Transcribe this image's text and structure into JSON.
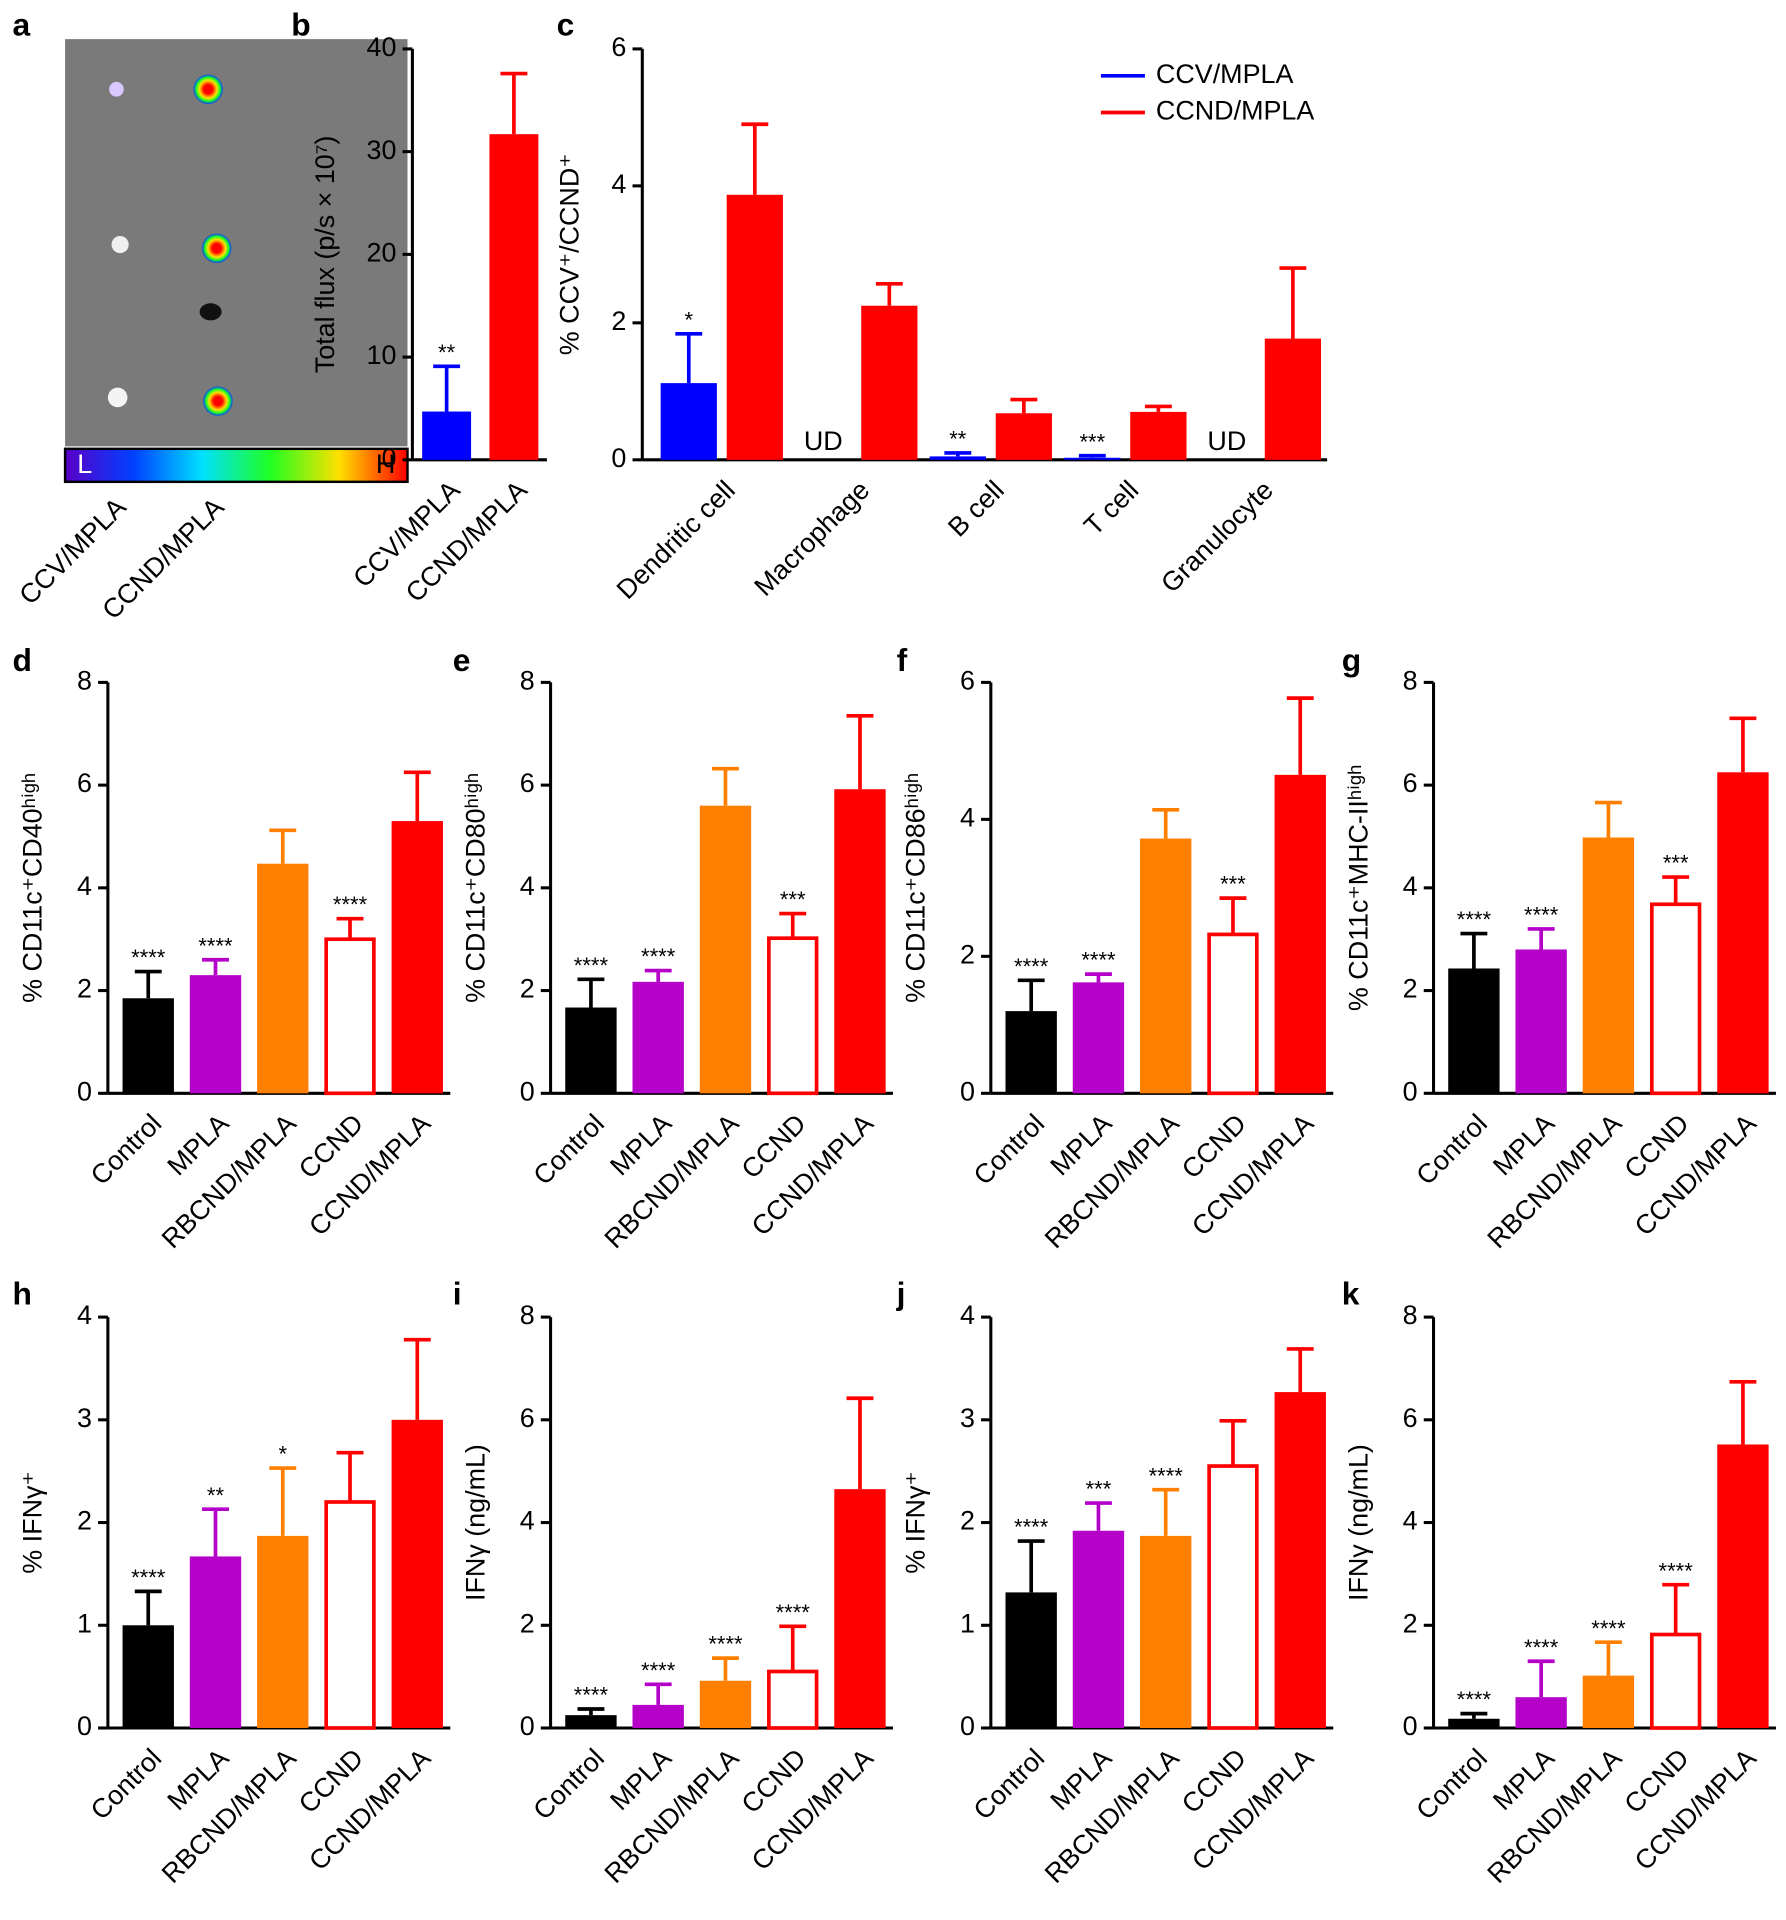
{
  "chart_data": [
    {
      "panel": "a",
      "type": "image",
      "categories": [
        "CCV/MPLA",
        "CCND/MPLA"
      ],
      "colorbar_labels": [
        "L",
        "H"
      ]
    },
    {
      "panel": "b",
      "type": "bar",
      "ylabel": "Total flux (p/s × 10⁷)",
      "categories": [
        "CCV/MPLA",
        "CCND/MPLA"
      ],
      "values": [
        4.7,
        31.7
      ],
      "errors": [
        4.4,
        5.9
      ],
      "annotations": [
        "**",
        null
      ],
      "colors": [
        "#0000ff",
        "#ff0000"
      ],
      "ylim": [
        0,
        40
      ],
      "yticks": [
        0,
        10,
        20,
        30,
        40
      ]
    },
    {
      "panel": "c",
      "type": "grouped-bar",
      "ylabel": "% CCV⁺/CCND⁺",
      "categories": [
        "Dendritic cell",
        "Macrophage",
        "B cell",
        "T cell",
        "Granulocyte"
      ],
      "series": [
        {
          "name": "CCV/MPLA",
          "color": "#0000ff",
          "values": [
            1.12,
            null,
            0.05,
            0.03,
            null
          ],
          "errors": [
            0.72,
            null,
            0.05,
            0.03,
            null
          ],
          "annotations": [
            "*",
            null,
            "**",
            "***",
            null
          ],
          "value_labels": [
            null,
            "UD",
            null,
            null,
            "UD"
          ]
        },
        {
          "name": "CCND/MPLA",
          "color": "#ff0000",
          "values": [
            3.87,
            2.25,
            0.68,
            0.7,
            1.77
          ],
          "errors": [
            1.03,
            0.32,
            0.2,
            0.08,
            1.03
          ]
        }
      ],
      "ylim": [
        0,
        6
      ],
      "yticks": [
        0,
        2,
        4,
        6
      ],
      "legend": "upper right"
    },
    {
      "panel": "d",
      "type": "bar",
      "ylabel": "% CD11c⁺CD40ʰⁱᵍʰ",
      "categories": [
        "Control",
        "MPLA",
        "RBCND/MPLA",
        "CCND",
        "CCND/MPLA"
      ],
      "values": [
        1.85,
        2.3,
        4.47,
        3.0,
        5.3
      ],
      "errors": [
        0.52,
        0.3,
        0.65,
        0.4,
        0.95
      ],
      "annotations": [
        "****",
        "****",
        null,
        "****",
        null
      ],
      "colors": [
        "#000000",
        "#b400c8",
        "#ff8000",
        "#ff0000",
        "#ff0000"
      ],
      "filled": [
        true,
        true,
        true,
        false,
        true
      ],
      "ylim": [
        0,
        8
      ],
      "yticks": [
        0,
        2,
        4,
        6,
        8
      ]
    },
    {
      "panel": "e",
      "type": "bar",
      "ylabel": "% CD11c⁺CD80ʰⁱᵍʰ",
      "categories": [
        "Control",
        "MPLA",
        "RBCND/MPLA",
        "CCND",
        "CCND/MPLA"
      ],
      "values": [
        1.67,
        2.17,
        5.6,
        3.02,
        5.92
      ],
      "errors": [
        0.55,
        0.22,
        0.72,
        0.48,
        1.43
      ],
      "annotations": [
        "****",
        "****",
        null,
        "***",
        null
      ],
      "colors": [
        "#000000",
        "#b400c8",
        "#ff8000",
        "#ff0000",
        "#ff0000"
      ],
      "filled": [
        true,
        true,
        true,
        false,
        true
      ],
      "ylim": [
        0,
        8
      ],
      "yticks": [
        0,
        2,
        4,
        6,
        8
      ]
    },
    {
      "panel": "f",
      "type": "bar",
      "ylabel": "% CD11c⁺CD86ʰⁱᵍʰ",
      "categories": [
        "Control",
        "MPLA",
        "RBCND/MPLA",
        "CCND",
        "CCND/MPLA"
      ],
      "values": [
        1.2,
        1.62,
        3.72,
        2.32,
        4.65
      ],
      "errors": [
        0.45,
        0.12,
        0.42,
        0.53,
        1.12
      ],
      "annotations": [
        "****",
        "****",
        null,
        "***",
        null
      ],
      "colors": [
        "#000000",
        "#b400c8",
        "#ff8000",
        "#ff0000",
        "#ff0000"
      ],
      "filled": [
        true,
        true,
        true,
        false,
        true
      ],
      "ylim": [
        0,
        6
      ],
      "yticks": [
        0,
        2,
        4,
        6
      ]
    },
    {
      "panel": "g",
      "type": "bar",
      "ylabel": "% CD11c⁺MHC-IIʰⁱᵍʰ",
      "categories": [
        "Control",
        "MPLA",
        "RBCND/MPLA",
        "CCND",
        "CCND/MPLA"
      ],
      "values": [
        2.43,
        2.8,
        4.98,
        3.68,
        6.25
      ],
      "errors": [
        0.68,
        0.4,
        0.68,
        0.53,
        1.05
      ],
      "annotations": [
        "****",
        "****",
        null,
        "***",
        null
      ],
      "colors": [
        "#000000",
        "#b400c8",
        "#ff8000",
        "#ff0000",
        "#ff0000"
      ],
      "filled": [
        true,
        true,
        true,
        false,
        true
      ],
      "ylim": [
        0,
        8
      ],
      "yticks": [
        0,
        2,
        4,
        6,
        8
      ]
    },
    {
      "panel": "h",
      "type": "bar",
      "ylabel": "% IFNγ⁺",
      "categories": [
        "Control",
        "MPLA",
        "RBCND/MPLA",
        "CCND",
        "CCND/MPLA"
      ],
      "values": [
        1.0,
        1.67,
        1.87,
        2.2,
        3.0
      ],
      "errors": [
        0.33,
        0.46,
        0.66,
        0.48,
        0.78
      ],
      "annotations": [
        "****",
        "**",
        "*",
        null,
        null
      ],
      "colors": [
        "#000000",
        "#b400c8",
        "#ff8000",
        "#ff0000",
        "#ff0000"
      ],
      "filled": [
        true,
        true,
        true,
        false,
        true
      ],
      "ylim": [
        0,
        4
      ],
      "yticks": [
        0,
        1,
        2,
        3,
        4
      ]
    },
    {
      "panel": "i",
      "type": "bar",
      "ylabel": "IFNγ (ng/mL)",
      "categories": [
        "Control",
        "MPLA",
        "RBCND/MPLA",
        "CCND",
        "CCND/MPLA"
      ],
      "values": [
        0.25,
        0.45,
        0.92,
        1.1,
        4.65
      ],
      "errors": [
        0.12,
        0.4,
        0.44,
        0.88,
        1.77
      ],
      "annotations": [
        "****",
        "****",
        "****",
        "****",
        null
      ],
      "colors": [
        "#000000",
        "#b400c8",
        "#ff8000",
        "#ff0000",
        "#ff0000"
      ],
      "filled": [
        true,
        true,
        true,
        false,
        true
      ],
      "ylim": [
        0,
        8
      ],
      "yticks": [
        0,
        2,
        4,
        6,
        8
      ]
    },
    {
      "panel": "j",
      "type": "bar",
      "ylabel": "% IFNγ⁺",
      "categories": [
        "Control",
        "MPLA",
        "RBCND/MPLA",
        "CCND",
        "CCND/MPLA"
      ],
      "values": [
        1.32,
        1.92,
        1.87,
        2.55,
        3.27
      ],
      "errors": [
        0.5,
        0.27,
        0.45,
        0.44,
        0.42
      ],
      "annotations": [
        "****",
        "***",
        "****",
        null,
        null
      ],
      "colors": [
        "#000000",
        "#b400c8",
        "#ff8000",
        "#ff0000",
        "#ff0000"
      ],
      "filled": [
        true,
        true,
        true,
        false,
        true
      ],
      "ylim": [
        0,
        4
      ],
      "yticks": [
        0,
        1,
        2,
        3,
        4
      ]
    },
    {
      "panel": "k",
      "type": "bar",
      "ylabel": "IFNγ (ng/mL)",
      "categories": [
        "Control",
        "MPLA",
        "RBCND/MPLA",
        "CCND",
        "CCND/MPLA"
      ],
      "values": [
        0.18,
        0.6,
        1.02,
        1.82,
        5.52
      ],
      "errors": [
        0.1,
        0.7,
        0.65,
        0.97,
        1.22
      ],
      "annotations": [
        "****",
        "****",
        "****",
        "****",
        null
      ],
      "colors": [
        "#000000",
        "#b400c8",
        "#ff8000",
        "#ff0000",
        "#ff0000"
      ],
      "filled": [
        true,
        true,
        true,
        false,
        true
      ],
      "ylim": [
        0,
        8
      ],
      "yticks": [
        0,
        2,
        4,
        6,
        8
      ]
    }
  ]
}
